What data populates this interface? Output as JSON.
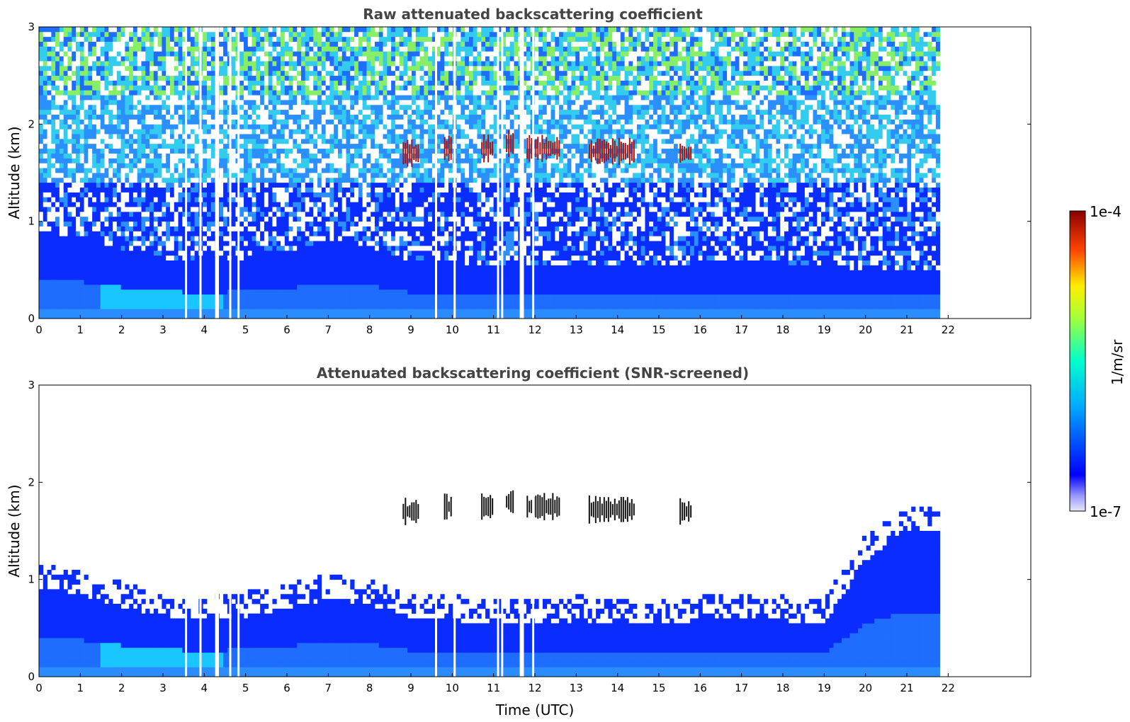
{
  "chart_data": [
    {
      "type": "heatmap",
      "title": "Raw attenuated backscattering coefficient",
      "xlabel": "",
      "ylabel": "Altitude (km)",
      "xlim": [
        0,
        24
      ],
      "ylim": [
        0,
        3
      ],
      "x_ticks": [
        0,
        1,
        2,
        3,
        4,
        5,
        6,
        7,
        8,
        9,
        10,
        11,
        12,
        13,
        14,
        15,
        16,
        17,
        18,
        19,
        20,
        21,
        22
      ],
      "y_ticks": [
        0,
        1,
        2,
        3
      ],
      "data_end_time": 21.8,
      "screened": false,
      "boundary_layer_top_km": [
        0.9,
        0.85,
        0.72,
        0.62,
        0.6,
        0.62,
        0.7,
        0.8,
        0.75,
        0.6,
        0.58,
        0.55,
        0.55,
        0.58,
        0.55,
        0.55,
        0.58,
        0.6,
        0.58,
        0.55,
        0.5,
        0.5,
        0.5
      ],
      "cloud_layers": [
        {
          "t_start": 8.8,
          "t_end": 9.2,
          "alt_km": 1.7
        },
        {
          "t_start": 9.8,
          "t_end": 10.0,
          "alt_km": 1.75
        },
        {
          "t_start": 10.7,
          "t_end": 11.0,
          "alt_km": 1.75
        },
        {
          "t_start": 11.3,
          "t_end": 11.5,
          "alt_km": 1.8
        },
        {
          "t_start": 11.8,
          "t_end": 12.6,
          "alt_km": 1.75
        },
        {
          "t_start": 13.3,
          "t_end": 14.4,
          "alt_km": 1.72
        },
        {
          "t_start": 15.5,
          "t_end": 15.8,
          "alt_km": 1.7
        }
      ],
      "data_gaps": [
        3.55,
        3.9,
        4.28,
        4.32,
        4.62,
        4.82,
        9.6,
        10.05,
        11.1,
        11.2,
        11.65,
        11.7,
        11.95
      ]
    },
    {
      "type": "heatmap",
      "title": "Attenuated backscattering coefficient (SNR-screened)",
      "xlabel": "Time (UTC)",
      "ylabel": "Altitude (km)",
      "xlim": [
        0,
        24
      ],
      "ylim": [
        0,
        3
      ],
      "x_ticks": [
        0,
        1,
        2,
        3,
        4,
        5,
        6,
        7,
        8,
        9,
        10,
        11,
        12,
        13,
        14,
        15,
        16,
        17,
        18,
        19,
        20,
        21,
        22
      ],
      "y_ticks": [
        0,
        1,
        2,
        3
      ],
      "data_end_time": 21.8,
      "screened": true,
      "boundary_layer_top_km": [
        0.9,
        0.85,
        0.72,
        0.62,
        0.6,
        0.62,
        0.7,
        0.8,
        0.75,
        0.6,
        0.58,
        0.55,
        0.55,
        0.58,
        0.55,
        0.55,
        0.58,
        0.6,
        0.58,
        0.55,
        1.2,
        1.5,
        1.5
      ],
      "cloud_layers": [
        {
          "t_start": 8.8,
          "t_end": 9.2,
          "alt_km": 1.7
        },
        {
          "t_start": 9.8,
          "t_end": 10.0,
          "alt_km": 1.75
        },
        {
          "t_start": 10.7,
          "t_end": 11.0,
          "alt_km": 1.75
        },
        {
          "t_start": 11.3,
          "t_end": 11.5,
          "alt_km": 1.8
        },
        {
          "t_start": 11.8,
          "t_end": 12.6,
          "alt_km": 1.75
        },
        {
          "t_start": 13.3,
          "t_end": 14.4,
          "alt_km": 1.72
        },
        {
          "t_start": 15.5,
          "t_end": 15.8,
          "alt_km": 1.7
        }
      ],
      "data_gaps": [
        3.55,
        3.9,
        4.28,
        4.32,
        4.62,
        4.82,
        9.6,
        10.05,
        11.1,
        11.2,
        11.65,
        11.7,
        11.95
      ]
    }
  ],
  "colorbar": {
    "label": "1/m/sr",
    "max_label": "1e-4",
    "min_label": "1e-7",
    "scale": "log",
    "colormap": "jet"
  }
}
